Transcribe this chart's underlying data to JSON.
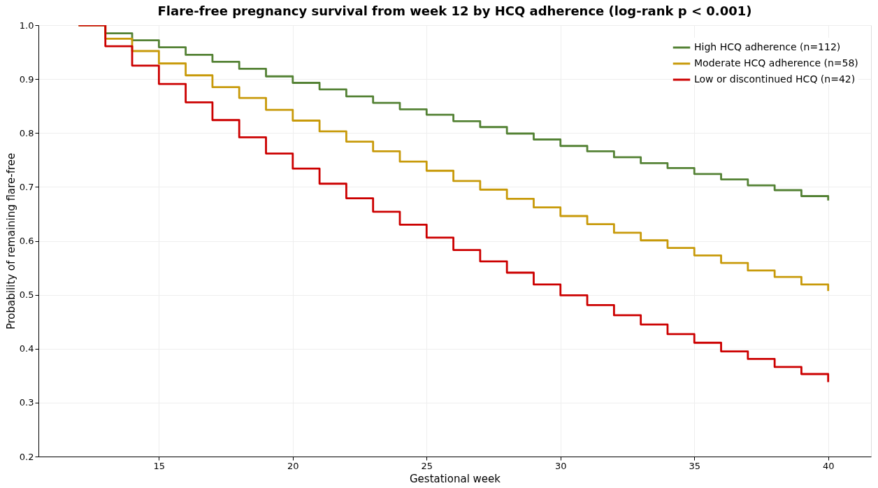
{
  "chart_data": {
    "type": "step",
    "title": "Flare-free pregnancy survival from week 12 by HCQ adherence (log-rank p < 0.001)",
    "xlabel": "Gestational week",
    "ylabel": "Probability of remaining flare-free",
    "x": [
      12,
      13,
      14,
      15,
      16,
      17,
      18,
      19,
      20,
      21,
      22,
      23,
      24,
      25,
      26,
      27,
      28,
      29,
      30,
      31,
      32,
      33,
      34,
      35,
      36,
      37,
      38,
      39,
      40
    ],
    "series": [
      {
        "name": "High HCQ adherence (n=112)",
        "color": "#548235",
        "values": [
          1.0,
          0.985,
          0.972,
          0.959,
          0.945,
          0.932,
          0.919,
          0.905,
          0.893,
          0.881,
          0.868,
          0.856,
          0.844,
          0.834,
          0.822,
          0.811,
          0.799,
          0.788,
          0.776,
          0.766,
          0.755,
          0.744,
          0.735,
          0.724,
          0.714,
          0.703,
          0.694,
          0.683,
          0.675
        ]
      },
      {
        "name": "Moderate HCQ adherence (n=58)",
        "color": "#c89a0a",
        "values": [
          1.0,
          0.975,
          0.952,
          0.929,
          0.907,
          0.885,
          0.865,
          0.843,
          0.823,
          0.803,
          0.784,
          0.766,
          0.747,
          0.73,
          0.711,
          0.695,
          0.678,
          0.662,
          0.646,
          0.631,
          0.615,
          0.601,
          0.587,
          0.573,
          0.559,
          0.545,
          0.533,
          0.519,
          0.507
        ]
      },
      {
        "name": "Low or discontinued HCQ (n=42)",
        "color": "#cc0000",
        "values": [
          1.0,
          0.961,
          0.925,
          0.891,
          0.857,
          0.824,
          0.792,
          0.762,
          0.734,
          0.706,
          0.679,
          0.654,
          0.63,
          0.606,
          0.583,
          0.562,
          0.541,
          0.519,
          0.499,
          0.481,
          0.462,
          0.445,
          0.427,
          0.411,
          0.395,
          0.381,
          0.366,
          0.353,
          0.338
        ]
      }
    ],
    "xlim": [
      10.5,
      41.6
    ],
    "xticks": [
      15,
      20,
      25,
      30,
      35,
      40
    ],
    "ylim": [
      0.2,
      1.0
    ],
    "yticks": [
      0.2,
      0.3,
      0.4,
      0.5,
      0.6,
      0.7,
      0.8,
      0.9,
      {
        "value": 1.0,
        "label": "1.0"
      }
    ],
    "grid": true,
    "legend": "top right",
    "line_style": "solid",
    "marker": "none"
  }
}
